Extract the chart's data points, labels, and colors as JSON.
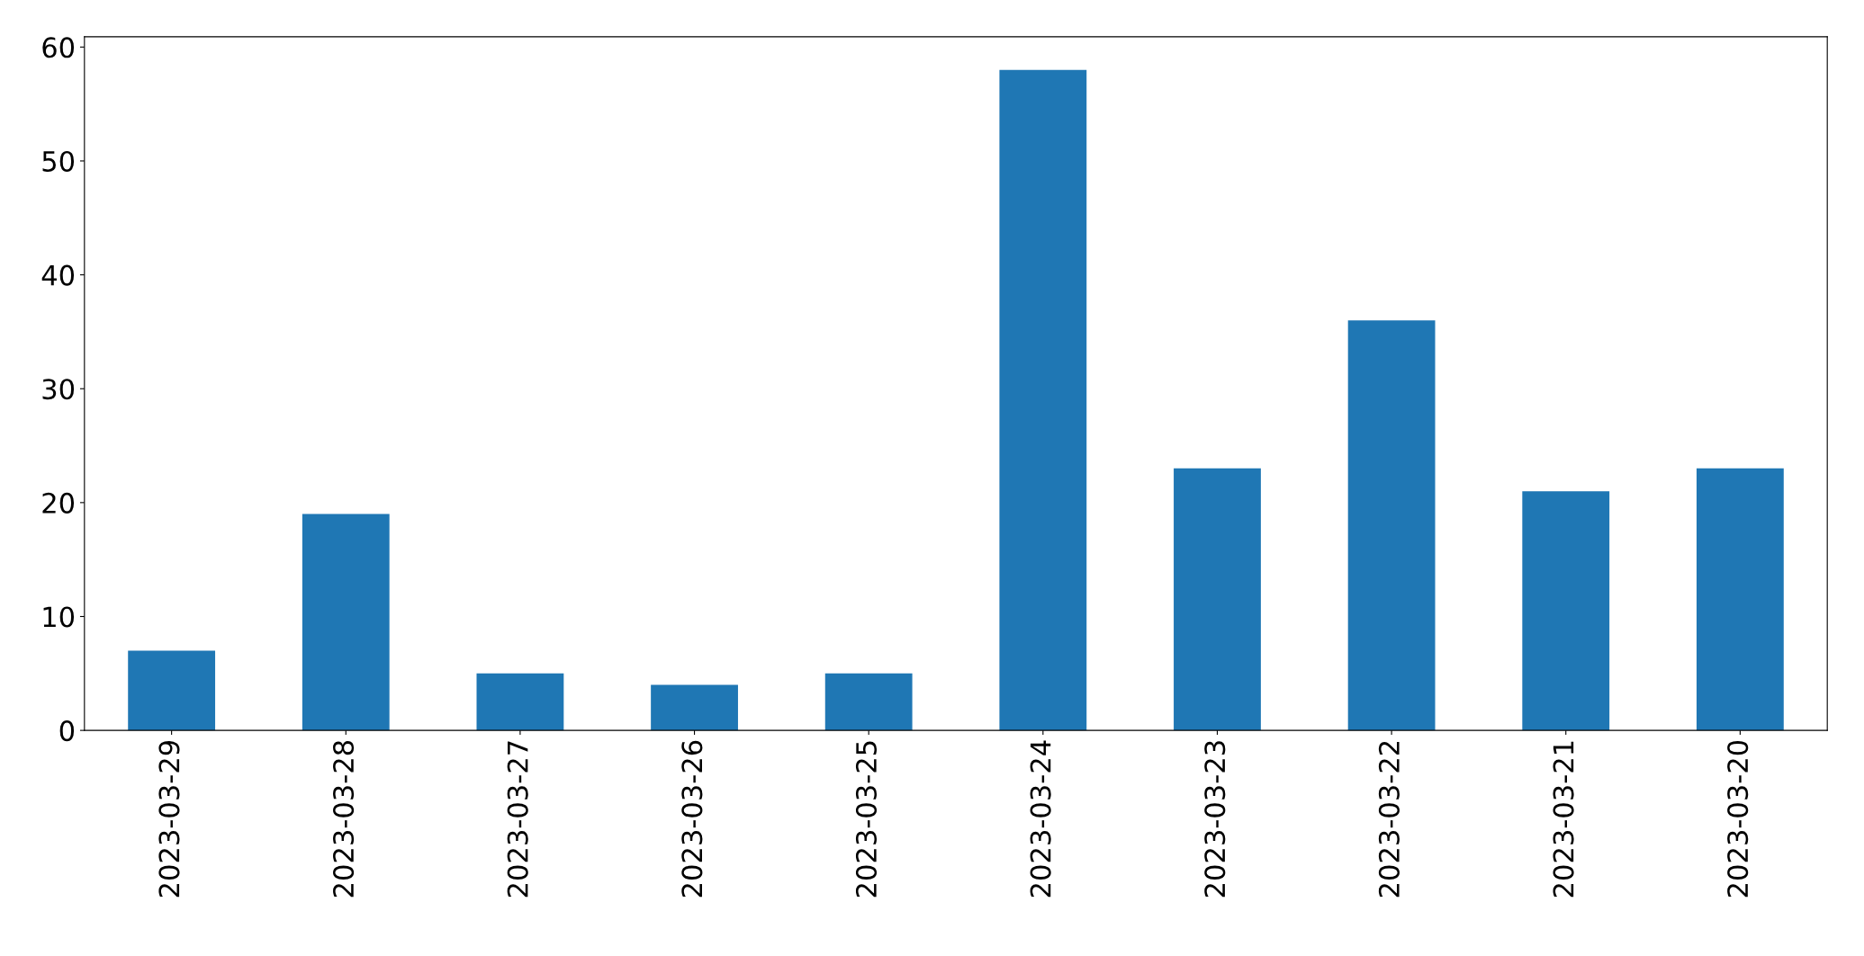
{
  "chart_data": {
    "type": "bar",
    "categories": [
      "2023-03-29",
      "2023-03-28",
      "2023-03-27",
      "2023-03-26",
      "2023-03-25",
      "2023-03-24",
      "2023-03-23",
      "2023-03-22",
      "2023-03-21",
      "2023-03-20"
    ],
    "values": [
      7,
      19,
      5,
      4,
      5,
      58,
      23,
      36,
      21,
      23
    ],
    "color": "#1f77b4",
    "ylim": [
      0,
      60.9
    ],
    "yticks": [
      0,
      10,
      20,
      30,
      40,
      50,
      60
    ],
    "grid": false,
    "legend": false
  }
}
